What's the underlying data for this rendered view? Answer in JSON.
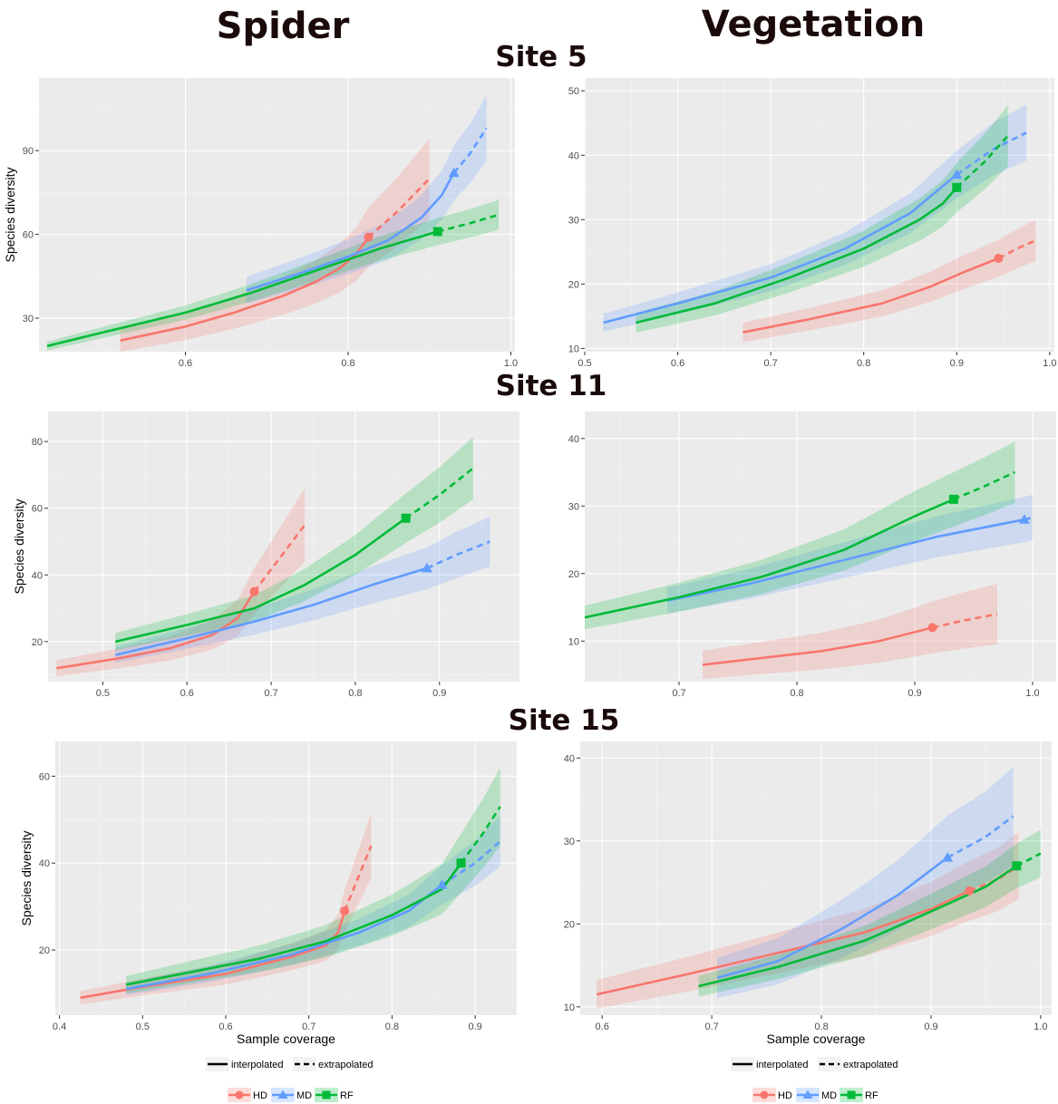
{
  "titles": {
    "spider": "Spider",
    "vegetation": "Vegetation"
  },
  "sites": [
    "Site 5",
    "Site 11",
    "Site 15"
  ],
  "colors": {
    "HD": "#F8766D",
    "MD": "#619CFF",
    "RF": "#00BA38",
    "panel": "#EBEBEB"
  },
  "legend": {
    "line_types": [
      "interpolated",
      "extrapolated"
    ],
    "groups": [
      "HD",
      "MD",
      "RF"
    ]
  },
  "chart_data": [
    {
      "type": "line",
      "site": "Site 5",
      "column": "Spider",
      "ylabel": "Species diversity",
      "xlabel": "",
      "xlim": [
        0.42,
        1.005
      ],
      "ylim": [
        18,
        116
      ],
      "xticks": [
        0.6,
        0.8,
        1.0
      ],
      "yticks": [
        30,
        60,
        90
      ],
      "xtick_labels": [
        "0.6",
        "0.8",
        "1.0"
      ],
      "ytick_labels": [
        "30",
        "60",
        "90"
      ],
      "grid": true,
      "series": [
        {
          "name": "HD",
          "marker": "circle",
          "point": [
            0.825,
            59
          ],
          "ci": 0.18,
          "interp": [
            [
              0.52,
              22
            ],
            [
              0.6,
              27
            ],
            [
              0.66,
              32
            ],
            [
              0.72,
              38
            ],
            [
              0.76,
              43
            ],
            [
              0.79,
              48
            ],
            [
              0.81,
              53
            ],
            [
              0.825,
              59
            ]
          ],
          "extrap": [
            [
              0.825,
              59
            ],
            [
              0.86,
              68
            ],
            [
              0.9,
              80
            ]
          ]
        },
        {
          "name": "MD",
          "marker": "triangle",
          "point": [
            0.93,
            82
          ],
          "ci": 0.12,
          "interp": [
            [
              0.675,
              40
            ],
            [
              0.74,
              46
            ],
            [
              0.8,
              52
            ],
            [
              0.85,
              58
            ],
            [
              0.89,
              66
            ],
            [
              0.915,
              74
            ],
            [
              0.93,
              82
            ]
          ],
          "extrap": [
            [
              0.93,
              82
            ],
            [
              0.95,
              89
            ],
            [
              0.97,
              98
            ]
          ]
        },
        {
          "name": "RF",
          "marker": "square",
          "point": [
            0.91,
            61
          ],
          "ci": 0.08,
          "interp": [
            [
              0.43,
              20
            ],
            [
              0.5,
              25
            ],
            [
              0.6,
              32
            ],
            [
              0.68,
              39
            ],
            [
              0.76,
              47
            ],
            [
              0.84,
              55
            ],
            [
              0.91,
              61
            ]
          ],
          "extrap": [
            [
              0.91,
              61
            ],
            [
              0.95,
              64
            ],
            [
              0.985,
              67
            ]
          ]
        }
      ]
    },
    {
      "type": "line",
      "site": "Site 5",
      "column": "Vegetation",
      "ylabel": "",
      "xlabel": "",
      "xlim": [
        0.5,
        1.005
      ],
      "ylim": [
        9.5,
        52
      ],
      "xticks": [
        0.5,
        0.6,
        0.7,
        0.8,
        0.9,
        1.0
      ],
      "yticks": [
        10,
        20,
        30,
        40,
        50
      ],
      "xtick_labels": [
        "0.5",
        "0.6",
        "0.7",
        "0.8",
        "0.9",
        "1.0"
      ],
      "ytick_labels": [
        "10",
        "20",
        "30",
        "40",
        "50"
      ],
      "grid": true,
      "series": [
        {
          "name": "HD",
          "marker": "circle",
          "point": [
            0.945,
            24
          ],
          "ci": 0.12,
          "interp": [
            [
              0.67,
              12.5
            ],
            [
              0.74,
              14.5
            ],
            [
              0.82,
              17
            ],
            [
              0.87,
              19.5
            ],
            [
              0.91,
              22
            ],
            [
              0.945,
              24
            ]
          ],
          "extrap": [
            [
              0.945,
              24
            ],
            [
              0.965,
              25.5
            ],
            [
              0.985,
              26.8
            ]
          ]
        },
        {
          "name": "MD",
          "marker": "triangle",
          "point": [
            0.9,
            37
          ],
          "ci": 0.1,
          "interp": [
            [
              0.52,
              14
            ],
            [
              0.6,
              17
            ],
            [
              0.7,
              21
            ],
            [
              0.78,
              25.5
            ],
            [
              0.85,
              31
            ],
            [
              0.9,
              37
            ]
          ],
          "extrap": [
            [
              0.9,
              37
            ],
            [
              0.94,
              41
            ],
            [
              0.975,
              43.5
            ]
          ]
        },
        {
          "name": "RF",
          "marker": "square",
          "point": [
            0.9,
            35
          ],
          "ci": 0.11,
          "interp": [
            [
              0.555,
              14
            ],
            [
              0.64,
              17
            ],
            [
              0.72,
              21
            ],
            [
              0.8,
              25.5
            ],
            [
              0.86,
              30
            ],
            [
              0.885,
              32.5
            ],
            [
              0.9,
              35
            ]
          ],
          "extrap": [
            [
              0.9,
              35
            ],
            [
              0.93,
              39
            ],
            [
              0.955,
              43
            ]
          ]
        }
      ]
    },
    {
      "type": "line",
      "site": "Site 11",
      "column": "Spider",
      "ylabel": "Species diversity",
      "xlabel": "",
      "xlim": [
        0.435,
        0.995
      ],
      "ylim": [
        8,
        89
      ],
      "xticks": [
        0.5,
        0.6,
        0.7,
        0.8,
        0.9
      ],
      "yticks": [
        20,
        40,
        60,
        80
      ],
      "xtick_labels": [
        "0.5",
        "0.6",
        "0.7",
        "0.8",
        "0.9"
      ],
      "ytick_labels": [
        "20",
        "40",
        "60",
        "80"
      ],
      "grid": true,
      "series": [
        {
          "name": "HD",
          "marker": "circle",
          "point": [
            0.68,
            35
          ],
          "ci": 0.2,
          "interp": [
            [
              0.445,
              12
            ],
            [
              0.52,
              15
            ],
            [
              0.58,
              18
            ],
            [
              0.63,
              22
            ],
            [
              0.66,
              27
            ],
            [
              0.68,
              35
            ]
          ],
          "extrap": [
            [
              0.68,
              35
            ],
            [
              0.71,
              45
            ],
            [
              0.74,
              55
            ]
          ]
        },
        {
          "name": "MD",
          "marker": "triangle",
          "point": [
            0.885,
            42
          ],
          "ci": 0.15,
          "interp": [
            [
              0.515,
              16
            ],
            [
              0.6,
              21
            ],
            [
              0.68,
              26
            ],
            [
              0.75,
              31
            ],
            [
              0.82,
              37
            ],
            [
              0.885,
              42
            ]
          ],
          "extrap": [
            [
              0.885,
              42
            ],
            [
              0.92,
              46
            ],
            [
              0.96,
              50
            ]
          ]
        },
        {
          "name": "RF",
          "marker": "square",
          "point": [
            0.86,
            57
          ],
          "ci": 0.13,
          "interp": [
            [
              0.515,
              20
            ],
            [
              0.6,
              25
            ],
            [
              0.68,
              30
            ],
            [
              0.74,
              37
            ],
            [
              0.8,
              46
            ],
            [
              0.86,
              57
            ]
          ],
          "extrap": [
            [
              0.86,
              57
            ],
            [
              0.9,
              64
            ],
            [
              0.94,
              72
            ]
          ]
        }
      ]
    },
    {
      "type": "line",
      "site": "Site 11",
      "column": "Vegetation",
      "ylabel": "",
      "xlabel": "",
      "xlim": [
        0.62,
        1.02
      ],
      "ylim": [
        4,
        44
      ],
      "xticks": [
        0.7,
        0.8,
        0.9,
        1.0
      ],
      "yticks": [
        10,
        20,
        30,
        40
      ],
      "xtick_labels": [
        "0.7",
        "0.8",
        "0.9",
        "1.0"
      ],
      "ytick_labels": [
        "10",
        "20",
        "30",
        "40"
      ],
      "grid": true,
      "series": [
        {
          "name": "HD",
          "marker": "circle",
          "point": [
            0.915,
            12
          ],
          "ci": 0.32,
          "interp": [
            [
              0.72,
              6.5
            ],
            [
              0.77,
              7.5
            ],
            [
              0.82,
              8.5
            ],
            [
              0.87,
              10
            ],
            [
              0.915,
              12
            ]
          ],
          "extrap": [
            [
              0.915,
              12
            ],
            [
              0.94,
              13
            ],
            [
              0.97,
              14
            ]
          ]
        },
        {
          "name": "MD",
          "marker": "triangle",
          "point": [
            0.993,
            28
          ],
          "ci": 0.12,
          "interp": [
            [
              0.69,
              16
            ],
            [
              0.76,
              18.5
            ],
            [
              0.84,
              22
            ],
            [
              0.92,
              25.5
            ],
            [
              0.993,
              28
            ]
          ],
          "extrap": [
            [
              0.993,
              28
            ],
            [
              1.0,
              28.3
            ]
          ]
        },
        {
          "name": "RF",
          "marker": "square",
          "point": [
            0.933,
            31
          ],
          "ci": 0.13,
          "interp": [
            [
              0.62,
              13.5
            ],
            [
              0.7,
              16.5
            ],
            [
              0.77,
              19.5
            ],
            [
              0.84,
              23.5
            ],
            [
              0.9,
              28.5
            ],
            [
              0.933,
              31
            ]
          ],
          "extrap": [
            [
              0.933,
              31
            ],
            [
              0.96,
              33
            ],
            [
              0.985,
              35
            ]
          ]
        }
      ]
    },
    {
      "type": "line",
      "site": "Site 15",
      "column": "Spider",
      "ylabel": "Species diversity",
      "xlabel": "Sample coverage",
      "xlim": [
        0.395,
        0.95
      ],
      "ylim": [
        5,
        68
      ],
      "xticks": [
        0.4,
        0.5,
        0.6,
        0.7,
        0.8,
        0.9
      ],
      "yticks": [
        20,
        40,
        60
      ],
      "xtick_labels": [
        "0.4",
        "0.5",
        "0.6",
        "0.7",
        "0.8",
        "0.9"
      ],
      "ytick_labels": [
        "20",
        "40",
        "60"
      ],
      "grid": true,
      "series": [
        {
          "name": "HD",
          "marker": "circle",
          "point": [
            0.743,
            29
          ],
          "ci": 0.17,
          "interp": [
            [
              0.425,
              9
            ],
            [
              0.5,
              11.5
            ],
            [
              0.6,
              14.5
            ],
            [
              0.68,
              18.5
            ],
            [
              0.72,
              21
            ],
            [
              0.735,
              24
            ],
            [
              0.743,
              29
            ]
          ],
          "extrap": [
            [
              0.743,
              29
            ],
            [
              0.76,
              37
            ],
            [
              0.775,
              44
            ]
          ]
        },
        {
          "name": "MD",
          "marker": "triangle",
          "point": [
            0.86,
            35
          ],
          "ci": 0.13,
          "interp": [
            [
              0.48,
              11
            ],
            [
              0.58,
              14.5
            ],
            [
              0.68,
              19
            ],
            [
              0.76,
              24
            ],
            [
              0.82,
              29
            ],
            [
              0.86,
              35
            ]
          ],
          "extrap": [
            [
              0.86,
              35
            ],
            [
              0.9,
              40
            ],
            [
              0.93,
              45
            ]
          ]
        },
        {
          "name": "RF",
          "marker": "square",
          "point": [
            0.883,
            40
          ],
          "ci": 0.17,
          "interp": [
            [
              0.48,
              12
            ],
            [
              0.56,
              15
            ],
            [
              0.64,
              18
            ],
            [
              0.72,
              22
            ],
            [
              0.8,
              28
            ],
            [
              0.86,
              34
            ],
            [
              0.883,
              40
            ]
          ],
          "extrap": [
            [
              0.883,
              40
            ],
            [
              0.91,
              47
            ],
            [
              0.93,
              53
            ]
          ]
        }
      ]
    },
    {
      "type": "line",
      "site": "Site 15",
      "column": "Vegetation",
      "ylabel": "",
      "xlabel": "Sample coverage",
      "xlim": [
        0.58,
        1.01
      ],
      "ylim": [
        9,
        42
      ],
      "xticks": [
        0.6,
        0.7,
        0.8,
        0.9,
        1.0
      ],
      "yticks": [
        10,
        20,
        30,
        40
      ],
      "xtick_labels": [
        "0.6",
        "0.7",
        "0.8",
        "0.9",
        "1.0"
      ],
      "ytick_labels": [
        "10",
        "20",
        "30",
        "40"
      ],
      "grid": true,
      "series": [
        {
          "name": "HD",
          "marker": "circle",
          "point": [
            0.935,
            24
          ],
          "ci": 0.15,
          "interp": [
            [
              0.595,
              11.5
            ],
            [
              0.68,
              14
            ],
            [
              0.76,
              16.5
            ],
            [
              0.84,
              19
            ],
            [
              0.9,
              21.8
            ],
            [
              0.935,
              24
            ]
          ],
          "extrap": [
            [
              0.935,
              24
            ],
            [
              0.96,
              25.3
            ],
            [
              0.98,
              27
            ]
          ]
        },
        {
          "name": "MD",
          "marker": "triangle",
          "point": [
            0.915,
            28
          ],
          "ci": 0.18,
          "interp": [
            [
              0.705,
              13.5
            ],
            [
              0.76,
              15.5
            ],
            [
              0.82,
              19.5
            ],
            [
              0.87,
              23.5
            ],
            [
              0.915,
              28
            ]
          ],
          "extrap": [
            [
              0.915,
              28
            ],
            [
              0.95,
              30.5
            ],
            [
              0.975,
              33
            ]
          ]
        },
        {
          "name": "RF",
          "marker": "square",
          "point": [
            0.978,
            27
          ],
          "ci": 0.1,
          "interp": [
            [
              0.688,
              12.5
            ],
            [
              0.76,
              14.8
            ],
            [
              0.84,
              18
            ],
            [
              0.9,
              21.5
            ],
            [
              0.95,
              24.5
            ],
            [
              0.978,
              27
            ]
          ],
          "extrap": [
            [
              0.978,
              27
            ],
            [
              0.99,
              27.8
            ],
            [
              1.0,
              28.5
            ]
          ]
        }
      ]
    }
  ]
}
